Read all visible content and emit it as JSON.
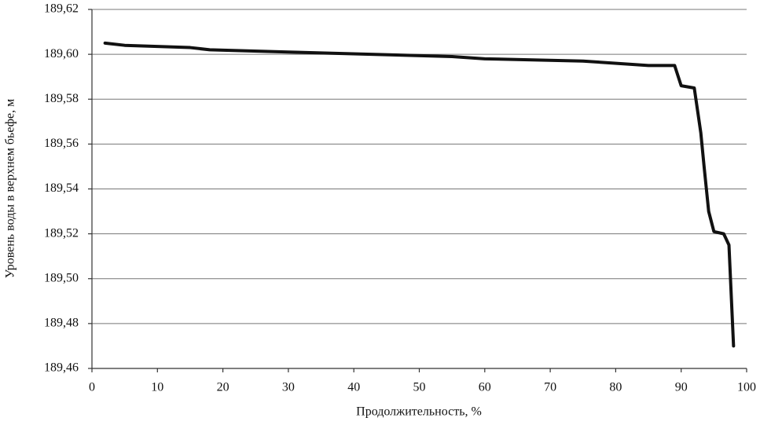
{
  "chart_data": {
    "type": "line",
    "x_label": "Продолжительность, %",
    "y_label": "Уровень воды в верхнем бьефе, м",
    "x": [
      2,
      5,
      15,
      18,
      30,
      55,
      60,
      75,
      85,
      89,
      90,
      92,
      93,
      93.5,
      94.2,
      95,
      96.5,
      97.3,
      98
    ],
    "series": [
      {
        "name": "Уровень",
        "color": "#111111",
        "values": [
          189.605,
          189.604,
          189.603,
          189.602,
          189.601,
          189.599,
          189.598,
          189.597,
          189.595,
          189.595,
          189.586,
          189.585,
          189.565,
          189.55,
          189.53,
          189.521,
          189.52,
          189.515,
          189.47
        ]
      }
    ],
    "xlim": [
      0,
      100
    ],
    "xticks": [
      0,
      10,
      20,
      30,
      40,
      50,
      60,
      70,
      80,
      90,
      100
    ],
    "ylim": [
      189.46,
      189.62
    ],
    "yticks": [
      {
        "value": 189.46,
        "label": "189,46"
      },
      {
        "value": 189.48,
        "label": "189,48"
      },
      {
        "value": 189.5,
        "label": "189,50"
      },
      {
        "value": 189.52,
        "label": "189,52"
      },
      {
        "value": 189.54,
        "label": "189,54"
      },
      {
        "value": 189.56,
        "label": "189,56"
      },
      {
        "value": 189.58,
        "label": "189,58"
      },
      {
        "value": 189.6,
        "label": "189,60"
      },
      {
        "value": 189.62,
        "label": "189,62"
      }
    ],
    "grid": true
  }
}
